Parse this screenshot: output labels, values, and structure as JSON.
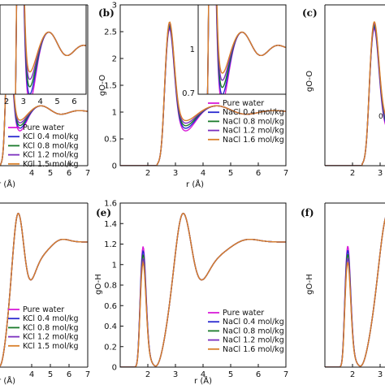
{
  "colors": {
    "pure": "#d81cd8",
    "c1": "#2a2ad0",
    "c2": "#1a7a2a",
    "c3": "#7b2fbe",
    "c4": "#d9802a"
  },
  "chart_data": [
    {
      "id": "a",
      "type": "line",
      "panel_label": "",
      "xlabel": "r (Å)",
      "ylabel": "",
      "xlim": [
        1,
        7
      ],
      "ylim": [
        0,
        3
      ],
      "x_ticks": [
        "4",
        "5",
        "6",
        "7"
      ],
      "y_ticks": [],
      "legend": [
        "Pure water",
        "KCl 0.4 mol/kg",
        "KCl 0.8 mol/kg",
        "KCl 1.2 mol/kg",
        "KCl 1.5 mol/kg"
      ],
      "inset": {
        "xlim": [
          2,
          7
        ],
        "ylim": [
          0.7,
          1.3
        ],
        "x_ticks": [
          "2",
          "3",
          "4",
          "5",
          "6"
        ],
        "y_ticks": []
      }
    },
    {
      "id": "b",
      "type": "line",
      "panel_label": "(b)",
      "xlabel": "r (Å)",
      "ylabel": "gO-O",
      "xlim": [
        1,
        7
      ],
      "ylim": [
        0,
        3
      ],
      "x_ticks": [
        "2",
        "3",
        "4",
        "5",
        "6",
        "7"
      ],
      "y_ticks": [
        "0",
        "0.5",
        "1",
        "1.5",
        "2",
        "2.5",
        "3"
      ],
      "legend": [
        "Pure water",
        "NaCl 0.4 mol/kg",
        "NaCl 0.8 mol/kg",
        "NaCl 1.2 mol/kg",
        "NaCl 1.6 mol/kg"
      ],
      "inset": {
        "xlim": [
          2,
          7
        ],
        "ylim": [
          0.7,
          1.3
        ],
        "y_ticks": [
          "1",
          "0.7"
        ]
      },
      "series": [
        {
          "name": "Pure water",
          "peak_r": 2.76,
          "peak_g": 2.7,
          "min_r": 3.4,
          "min_g": 0.82
        },
        {
          "name": "NaCl 0.4 mol/kg",
          "peak_r": 2.76,
          "peak_g": 2.72,
          "min_r": 3.4,
          "min_g": 0.86
        },
        {
          "name": "NaCl 0.8 mol/kg",
          "peak_r": 2.76,
          "peak_g": 2.74,
          "min_r": 3.4,
          "min_g": 0.9
        },
        {
          "name": "NaCl 1.2 mol/kg",
          "peak_r": 2.76,
          "peak_g": 2.76,
          "min_r": 3.4,
          "min_g": 0.94
        },
        {
          "name": "NaCl 1.6 mol/kg",
          "peak_r": 2.76,
          "peak_g": 2.78,
          "min_r": 3.4,
          "min_g": 0.98
        }
      ]
    },
    {
      "id": "c",
      "type": "line",
      "panel_label": "(c)",
      "xlabel": "",
      "ylabel": "gO-O",
      "x_ticks": [
        "2",
        "3"
      ],
      "y_ticks": [],
      "annotation": "0"
    },
    {
      "id": "d",
      "type": "line",
      "panel_label": "",
      "xlabel": "r (Å)",
      "ylabel": "",
      "xlim": [
        1,
        7
      ],
      "ylim": [
        0,
        1.6
      ],
      "x_ticks": [
        "4",
        "5",
        "6",
        "7"
      ],
      "y_ticks": [],
      "legend": [
        "Pure water",
        "KCl 0.4 mol/kg",
        "KCl 0.8 mol/kg",
        "KCl 1.2 mol/kg",
        "KCl 1.5 mol/kg"
      ]
    },
    {
      "id": "e",
      "type": "line",
      "panel_label": "(e)",
      "xlabel": "r (Å)",
      "ylabel": "gO-H",
      "xlim": [
        1,
        7
      ],
      "ylim": [
        0,
        1.6
      ],
      "x_ticks": [
        "2",
        "3",
        "4",
        "5",
        "6",
        "7"
      ],
      "y_ticks": [
        "0",
        "0.2",
        "0.4",
        "0.6",
        "0.8",
        "1",
        "1.2",
        "1.4",
        "1.6"
      ],
      "legend": [
        "Pure water",
        "NaCl 0.4 mol/kg",
        "NaCl 0.8 mol/kg",
        "NaCl 1.2 mol/kg",
        "NaCl 1.6 mol/kg"
      ],
      "series": [
        {
          "name": "Pure water",
          "peak1_g": 1.18,
          "peak2_g": 1.5
        },
        {
          "name": "NaCl 0.4 mol/kg",
          "peak1_g": 1.14,
          "peak2_g": 1.5
        },
        {
          "name": "NaCl 0.8 mol/kg",
          "peak1_g": 1.1,
          "peak2_g": 1.5
        },
        {
          "name": "NaCl 1.2 mol/kg",
          "peak1_g": 1.06,
          "peak2_g": 1.5
        },
        {
          "name": "NaCl 1.6 mol/kg",
          "peak1_g": 1.02,
          "peak2_g": 1.5
        }
      ]
    },
    {
      "id": "f",
      "type": "line",
      "panel_label": "(f)",
      "xlabel": "",
      "ylabel": "gO-H",
      "x_ticks": [
        "2",
        "3"
      ],
      "y_ticks": []
    }
  ]
}
